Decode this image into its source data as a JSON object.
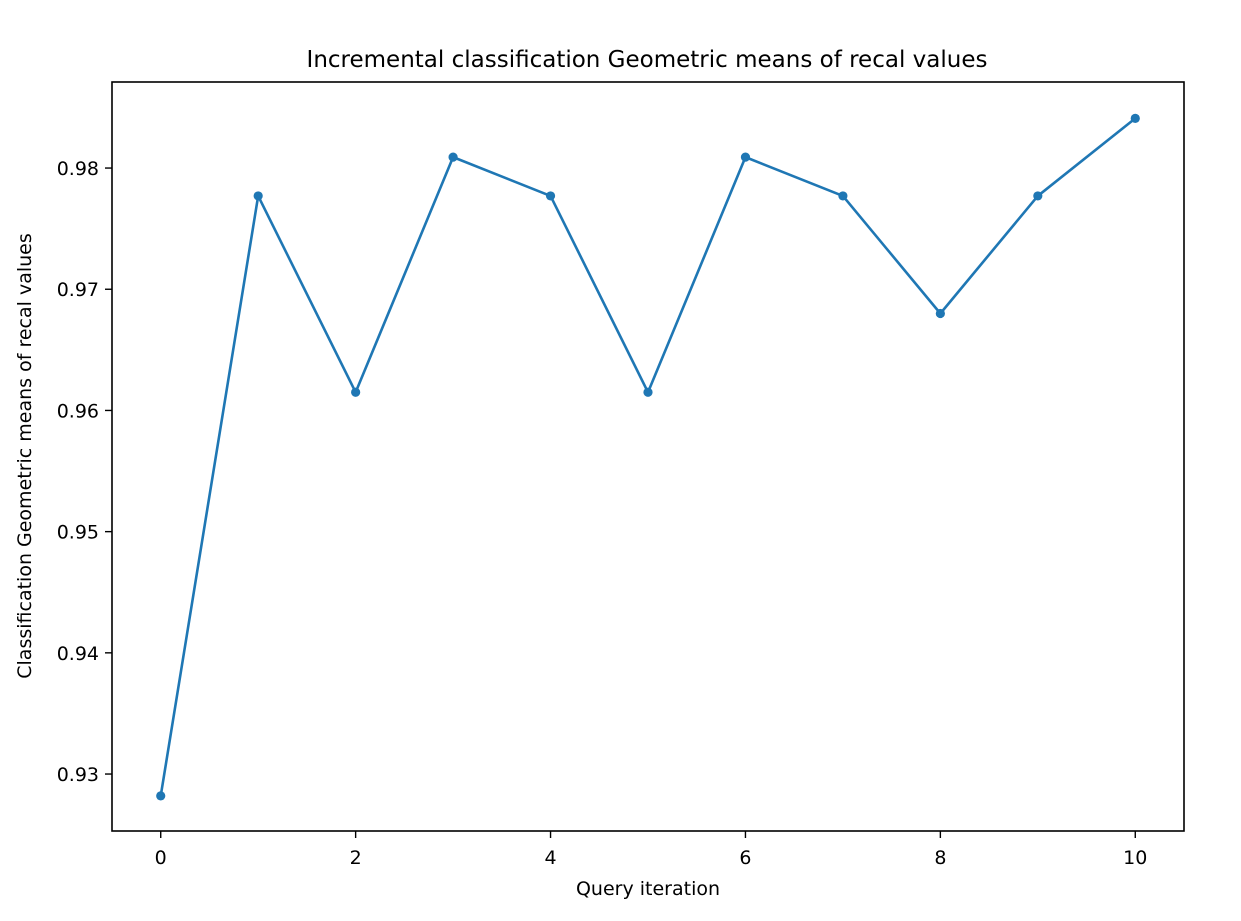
{
  "chart_data": {
    "type": "line",
    "title": "Incremental classification Geometric means of recal values",
    "xlabel": "Query iteration",
    "ylabel": "Classification Geometric means of recal values",
    "x": [
      0,
      1,
      2,
      3,
      4,
      5,
      6,
      7,
      8,
      9,
      10
    ],
    "series": [
      {
        "values": [
          0.9282,
          0.9777,
          0.9615,
          0.9809,
          0.9777,
          0.9615,
          0.9809,
          0.9777,
          0.968,
          0.9777,
          0.9841
        ],
        "color": "#1f77b4",
        "marker": "circle"
      }
    ],
    "xlim": [
      -0.5,
      10.5
    ],
    "ylim": [
      0.9253,
      0.9871
    ],
    "xticks": [
      0,
      2,
      4,
      6,
      8,
      10
    ],
    "yticks": [
      0.93,
      0.94,
      0.95,
      0.96,
      0.97,
      0.98
    ],
    "xtick_labels": [
      "0",
      "2",
      "4",
      "6",
      "8",
      "10"
    ],
    "ytick_labels": [
      "0.93",
      "0.94",
      "0.95",
      "0.96",
      "0.97",
      "0.98"
    ],
    "grid": false,
    "legend": "none"
  }
}
